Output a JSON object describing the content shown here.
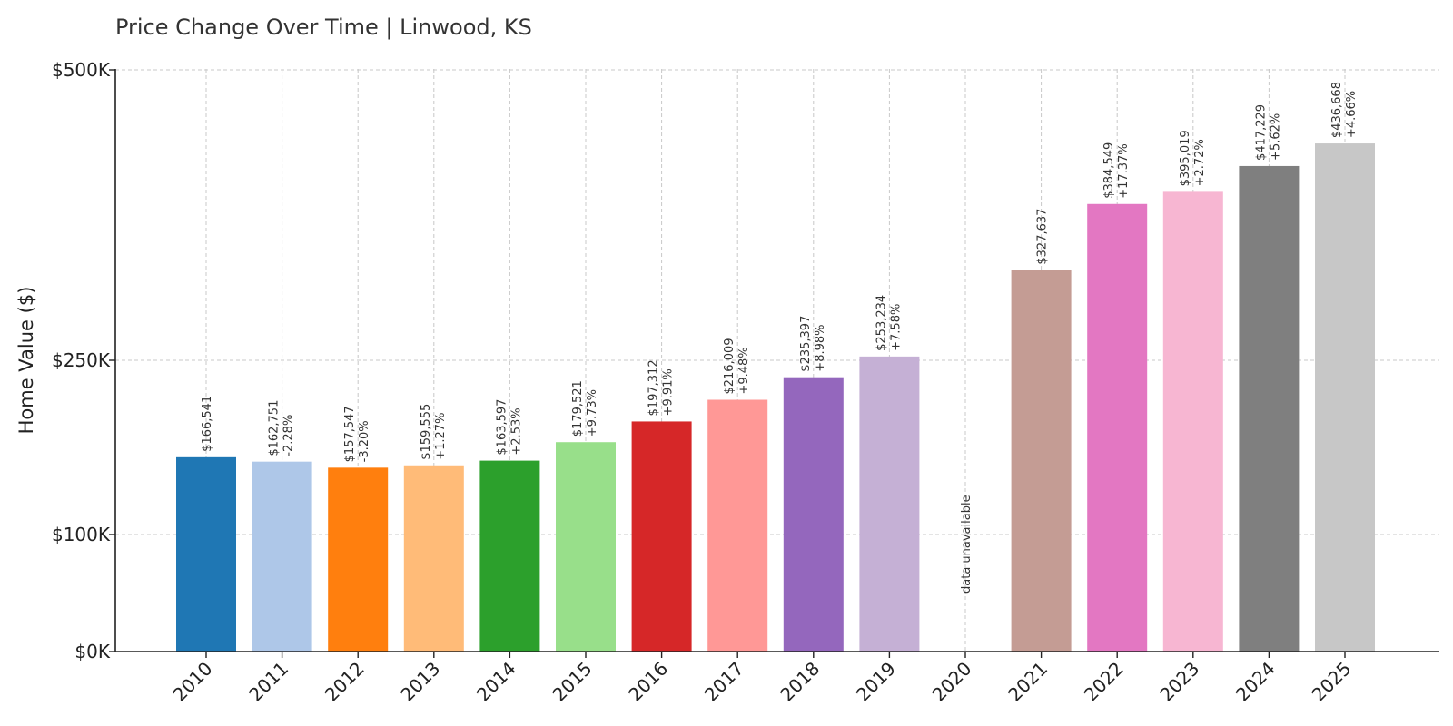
{
  "chart_data": {
    "type": "bar",
    "title": "Price Change Over Time | Linwood, KS",
    "xlabel": "",
    "ylabel": "Home Value ($)",
    "y_ticks": [
      {
        "value": 0,
        "label": "$0K"
      },
      {
        "value": 100000,
        "label": "$100K"
      },
      {
        "value": 250000,
        "label": "$250K"
      },
      {
        "value": 500000,
        "label": "$500K"
      }
    ],
    "y_scale": "piecewise-linear",
    "ylim": [
      0,
      500000
    ],
    "grid": true,
    "categories": [
      "2010",
      "2011",
      "2012",
      "2013",
      "2014",
      "2015",
      "2016",
      "2017",
      "2018",
      "2019",
      "2020",
      "2021",
      "2022",
      "2023",
      "2024",
      "2025"
    ],
    "values": [
      166541,
      162751,
      157547,
      159555,
      163597,
      179521,
      197312,
      216009,
      235397,
      253234,
      null,
      327637,
      384549,
      395019,
      417229,
      436668
    ],
    "value_labels": [
      "$166,541",
      "$162,751",
      "$157,547",
      "$159,555",
      "$163,597",
      "$179,521",
      "$197,312",
      "$216,009",
      "$235,397",
      "$253,234",
      "",
      "$327,637",
      "$384,549",
      "$395,019",
      "$417,229",
      "$436,668"
    ],
    "change_labels": [
      "",
      "-2.28%",
      "-3.20%",
      "+1.27%",
      "+2.53%",
      "+9.73%",
      "+9.91%",
      "+9.48%",
      "+8.98%",
      "+7.58%",
      "",
      "",
      "+17.37%",
      "+2.72%",
      "+5.62%",
      "+4.66%"
    ],
    "missing_label": "data unavailable",
    "colors": [
      "#1f77b4",
      "#aec7e8",
      "#ff7f0e",
      "#ffbb78",
      "#2ca02c",
      "#98df8a",
      "#d62728",
      "#ff9896",
      "#9467bd",
      "#c5b0d5",
      "#8c564b",
      "#c49c94",
      "#e377c2",
      "#f7b6d2",
      "#7f7f7f",
      "#c7c7c7"
    ]
  }
}
